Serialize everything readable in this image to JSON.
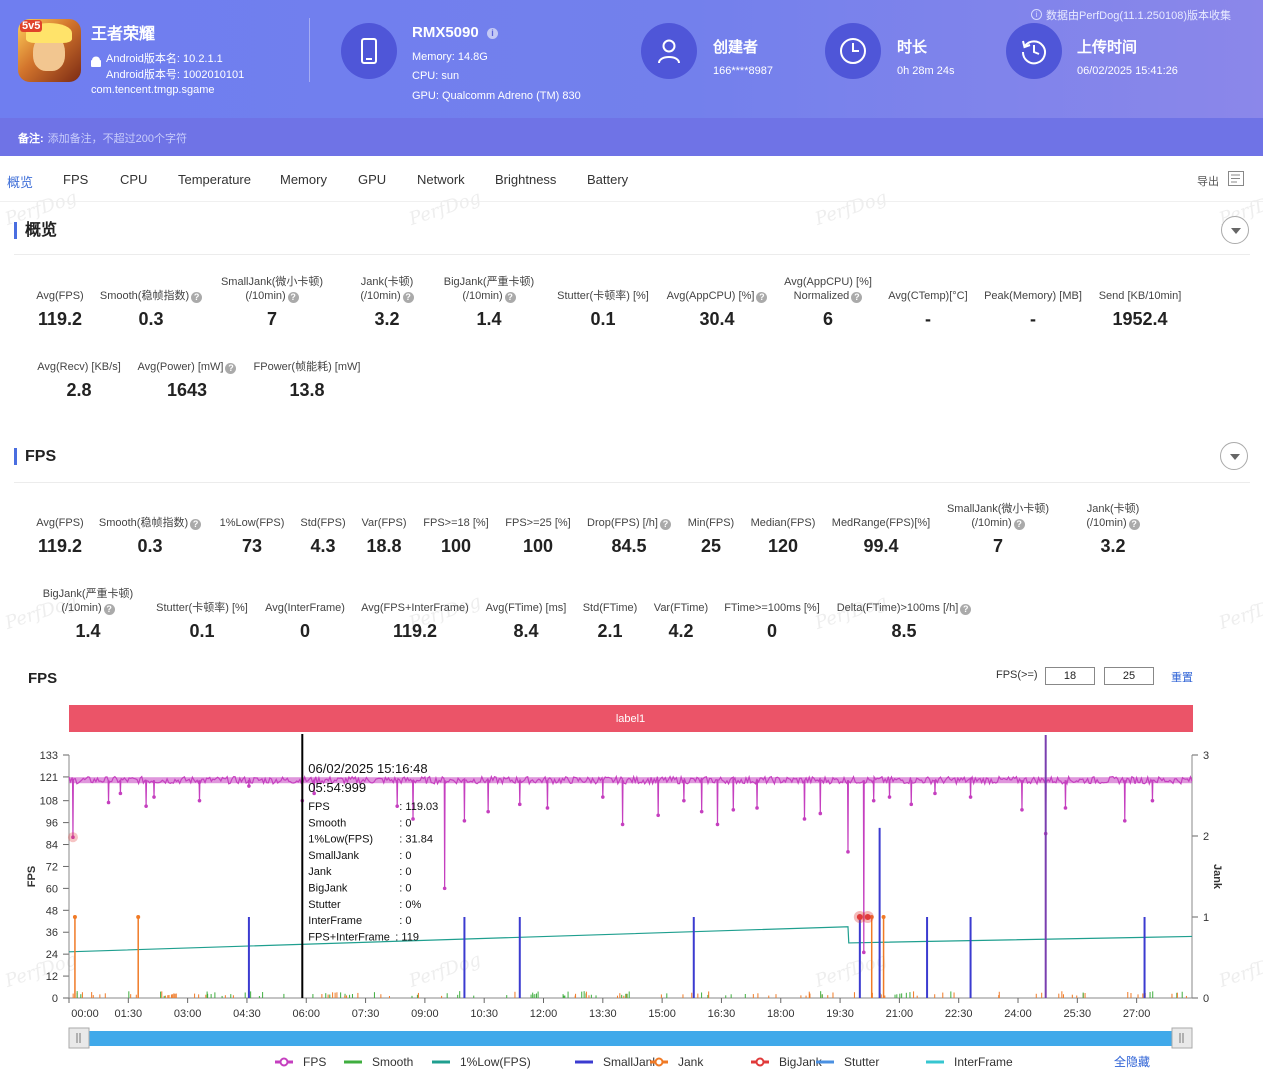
{
  "app": {
    "name": "王者荣耀",
    "version_name": "Android版本名: 10.2.1.1",
    "version_code": "Android版本号: 1002010101",
    "package": "com.tencent.tmgp.sgame",
    "icon_badge": "5v5"
  },
  "device": {
    "model": "RMX5090",
    "memory": "Memory: 14.8G",
    "cpu": "CPU: sun",
    "gpu": "GPU: Qualcomm Adreno (TM) 830"
  },
  "creator": {
    "label": "创建者",
    "value": "166****8987"
  },
  "duration": {
    "label": "时长",
    "value": "0h 28m 24s"
  },
  "upload": {
    "label": "上传时间",
    "value": "06/02/2025 15:41:26"
  },
  "source_note": "数据由PerfDog(11.1.250108)版本收集",
  "note": {
    "label": "备注:",
    "placeholder": "添加备注，不超过200个字符"
  },
  "tabs": [
    "概览",
    "FPS",
    "CPU",
    "Temperature",
    "Memory",
    "GPU",
    "Network",
    "Brightness",
    "Battery"
  ],
  "export_label": "导出",
  "watermark": "PerfDog",
  "overview": {
    "title": "概览",
    "stats": [
      {
        "l1": "",
        "l2": "Avg(FPS)",
        "v": "119.2",
        "q": false
      },
      {
        "l1": "",
        "l2": "Smooth(稳帧指数)",
        "v": "0.3",
        "q": true
      },
      {
        "l1": "SmallJank(微小卡顿)",
        "l2": "(/10min)",
        "v": "7",
        "q": true
      },
      {
        "l1": "Jank(卡顿)",
        "l2": "(/10min)",
        "v": "3.2",
        "q": true
      },
      {
        "l1": "BigJank(严重卡顿)",
        "l2": "(/10min)",
        "v": "1.4",
        "q": true
      },
      {
        "l1": "",
        "l2": "Stutter(卡顿率) [%]",
        "v": "0.1",
        "q": false
      },
      {
        "l1": "",
        "l2": "Avg(AppCPU) [%]",
        "v": "30.4",
        "q": true
      },
      {
        "l1": "Avg(AppCPU) [%]",
        "l2": "Normalized",
        "v": "6",
        "q": true
      },
      {
        "l1": "",
        "l2": "Avg(CTemp)[°C]",
        "v": "-",
        "q": false
      },
      {
        "l1": "",
        "l2": "Peak(Memory) [MB]",
        "v": "-",
        "q": false
      },
      {
        "l1": "",
        "l2": "Send [KB/10min]",
        "v": "1952.4",
        "q": false
      },
      {
        "l1": "",
        "l2": "Avg(Recv) [KB/s]",
        "v": "2.8",
        "q": false
      },
      {
        "l1": "",
        "l2": "Avg(Power) [mW]",
        "v": "1643",
        "q": true
      },
      {
        "l1": "",
        "l2": "FPower(帧能耗) [mW]",
        "v": "13.8",
        "q": false
      }
    ]
  },
  "fps_section": {
    "title": "FPS",
    "stats": [
      {
        "l1": "",
        "l2": "Avg(FPS)",
        "v": "119.2",
        "q": false
      },
      {
        "l1": "",
        "l2": "Smooth(稳帧指数)",
        "v": "0.3",
        "q": true
      },
      {
        "l1": "",
        "l2": "1%Low(FPS)",
        "v": "73",
        "q": false
      },
      {
        "l1": "",
        "l2": "Std(FPS)",
        "v": "4.3",
        "q": false
      },
      {
        "l1": "",
        "l2": "Var(FPS)",
        "v": "18.8",
        "q": false
      },
      {
        "l1": "",
        "l2": "FPS>=18 [%]",
        "v": "100",
        "q": false
      },
      {
        "l1": "",
        "l2": "FPS>=25 [%]",
        "v": "100",
        "q": false
      },
      {
        "l1": "",
        "l2": "Drop(FPS) [/h]",
        "v": "84.5",
        "q": true
      },
      {
        "l1": "",
        "l2": "Min(FPS)",
        "v": "25",
        "q": false
      },
      {
        "l1": "",
        "l2": "Median(FPS)",
        "v": "120",
        "q": false
      },
      {
        "l1": "",
        "l2": "MedRange(FPS)[%]",
        "v": "99.4",
        "q": false
      },
      {
        "l1": "SmallJank(微小卡顿)",
        "l2": "(/10min)",
        "v": "7",
        "q": true
      },
      {
        "l1": "Jank(卡顿)",
        "l2": "(/10min)",
        "v": "3.2",
        "q": true
      },
      {
        "l1": "BigJank(严重卡顿)",
        "l2": "(/10min)",
        "v": "1.4",
        "q": true
      },
      {
        "l1": "",
        "l2": "Stutter(卡顿率) [%]",
        "v": "0.1",
        "q": false
      },
      {
        "l1": "",
        "l2": "Avg(InterFrame)",
        "v": "0",
        "q": false
      },
      {
        "l1": "",
        "l2": "Avg(FPS+InterFrame)",
        "v": "119.2",
        "q": false
      },
      {
        "l1": "",
        "l2": "Avg(FTime) [ms]",
        "v": "8.4",
        "q": false
      },
      {
        "l1": "",
        "l2": "Std(FTime)",
        "v": "2.1",
        "q": false
      },
      {
        "l1": "",
        "l2": "Var(FTime)",
        "v": "4.2",
        "q": false
      },
      {
        "l1": "",
        "l2": "FTime>=100ms [%]",
        "v": "0",
        "q": false
      },
      {
        "l1": "",
        "l2": "Delta(FTime)>100ms [/h]",
        "v": "8.5",
        "q": true
      }
    ]
  },
  "chart": {
    "title": "FPS",
    "threshold_label": "FPS(>=)",
    "threshold_values": [
      "18",
      "25"
    ],
    "reset_label": "重置",
    "label_bar": "label1",
    "hide_all": "全隐藏",
    "colors": {
      "fps": "#c53fbf",
      "smooth": "#3fae3f",
      "low1": "#1f9f8f",
      "smalljank": "#3b3bd0",
      "jank": "#f07a26",
      "bigjank": "#e03a3a",
      "stutter": "#4a90e2",
      "interframe": "#36c6d0",
      "label": "#eb5468"
    },
    "tooltip": {
      "time": "06/02/2025 15:16:48",
      "elapsed": "05:54:999",
      "rows": [
        [
          "FPS",
          ": 119.03"
        ],
        [
          "Smooth",
          ": 0"
        ],
        [
          "1%Low(FPS)",
          ": 31.84"
        ],
        [
          "SmallJank",
          ": 0"
        ],
        [
          "Jank",
          ": 0"
        ],
        [
          "BigJank",
          ": 0"
        ],
        [
          "Stutter",
          ": 0%"
        ],
        [
          "InterFrame",
          ": 0"
        ],
        [
          "FPS+InterFrame",
          ": 119"
        ]
      ]
    }
  },
  "chart_data": {
    "type": "line",
    "ylabel": "FPS",
    "y2label": "Jank",
    "y_ticks": [
      "0",
      "12",
      "24",
      "36",
      "48",
      "60",
      "72",
      "84",
      "96",
      "108",
      "121",
      "133"
    ],
    "y2_ticks": [
      "0",
      "1",
      "2",
      "3"
    ],
    "ylim": [
      0,
      133
    ],
    "y2lim": [
      0,
      3
    ],
    "xlim": [
      0,
      28.4
    ],
    "x_ticks": [
      "00:00",
      "01:30",
      "03:00",
      "04:30",
      "06:00",
      "07:30",
      "09:00",
      "10:30",
      "12:00",
      "13:30",
      "15:00",
      "16:30",
      "18:00",
      "19:30",
      "21:00",
      "22:30",
      "24:00",
      "25:30",
      "27:00"
    ],
    "legend": [
      "FPS",
      "Smooth",
      "1%Low(FPS)",
      "SmallJank",
      "Jank",
      "BigJank",
      "Stutter",
      "InterFrame"
    ],
    "fps_baseline": 119.2,
    "fps_dips": [
      [
        0.1,
        88
      ],
      [
        1.0,
        107
      ],
      [
        1.3,
        112
      ],
      [
        1.95,
        105
      ],
      [
        2.15,
        110
      ],
      [
        3.3,
        108
      ],
      [
        4.55,
        116
      ],
      [
        5.9,
        108
      ],
      [
        6.2,
        112
      ],
      [
        8.3,
        105
      ],
      [
        8.7,
        98
      ],
      [
        9.5,
        60
      ],
      [
        10.0,
        97
      ],
      [
        10.6,
        102
      ],
      [
        11.4,
        106
      ],
      [
        12.1,
        104
      ],
      [
        13.5,
        110
      ],
      [
        14.0,
        95
      ],
      [
        14.9,
        100
      ],
      [
        15.55,
        108
      ],
      [
        16.0,
        102
      ],
      [
        16.4,
        95
      ],
      [
        16.8,
        103
      ],
      [
        17.4,
        104
      ],
      [
        18.6,
        98
      ],
      [
        19.0,
        101
      ],
      [
        19.7,
        80
      ],
      [
        20.1,
        25
      ],
      [
        20.35,
        108
      ],
      [
        20.75,
        110
      ],
      [
        21.3,
        106
      ],
      [
        21.9,
        112
      ],
      [
        22.8,
        110
      ],
      [
        24.1,
        103
      ],
      [
        24.7,
        90
      ],
      [
        25.2,
        104
      ],
      [
        26.7,
        97
      ],
      [
        27.4,
        108
      ]
    ],
    "smalljank_spikes": [
      [
        4.55,
        1.0
      ],
      [
        10.0,
        1.0
      ],
      [
        11.4,
        1.0
      ],
      [
        15.8,
        1.0
      ],
      [
        20.0,
        1.0
      ],
      [
        20.5,
        2.1
      ],
      [
        21.7,
        1.0
      ],
      [
        22.8,
        1.0
      ],
      [
        24.7,
        2.9
      ],
      [
        27.2,
        1.0
      ]
    ],
    "jank_spikes": [
      [
        0.15,
        1.0
      ],
      [
        1.75,
        1.0
      ],
      [
        20.3,
        1.0
      ],
      [
        20.6,
        1.0
      ]
    ],
    "bigjank_marks": [
      [
        20.0,
        1.0
      ],
      [
        20.2,
        1.0
      ]
    ],
    "low1_line": [
      [
        0,
        0.57
      ],
      [
        19.7,
        0.88
      ],
      [
        19.72,
        0.68
      ],
      [
        28.4,
        0.76
      ]
    ],
    "cursor_x": 5.9
  }
}
